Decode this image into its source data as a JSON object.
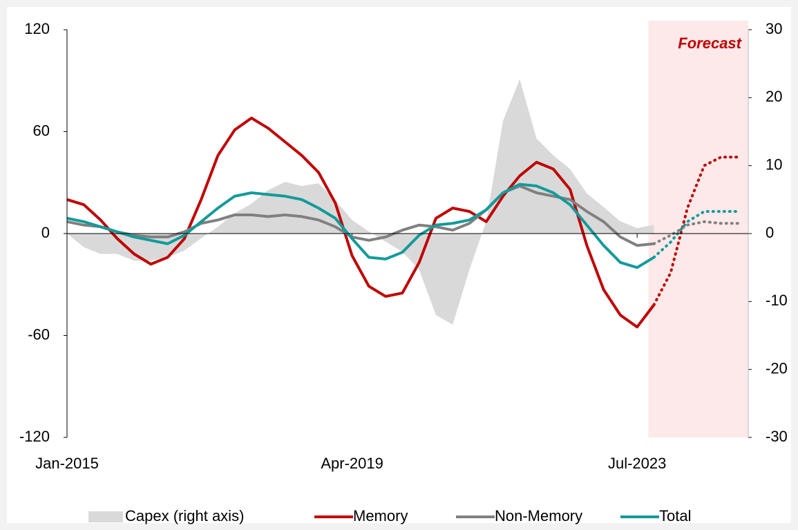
{
  "chart_data": {
    "type": "line",
    "categories": [
      "Jan-2015",
      null,
      null,
      null,
      null,
      null,
      null,
      null,
      null,
      null,
      null,
      null,
      null,
      null,
      null,
      null,
      null,
      "Apr-2019",
      null,
      null,
      null,
      null,
      null,
      null,
      null,
      null,
      null,
      null,
      null,
      null,
      null,
      null,
      null,
      null,
      "Jul-2023",
      null,
      null,
      null,
      null,
      null,
      null
    ],
    "series": [
      {
        "name": "Capex (right axis)",
        "color": "#d9d9d9",
        "axis": "y2",
        "style": "area",
        "values": [
          0,
          -2,
          -3,
          -3,
          -4,
          -4,
          -3.5,
          -2.5,
          -0.7,
          1,
          3,
          4.4,
          6.4,
          7.6,
          7,
          7.4,
          4.9,
          2,
          0.3,
          -1.2,
          -2.7,
          -5.3,
          -12,
          -13.4,
          -5.3,
          1.8,
          16.6,
          22.7,
          14,
          11.5,
          9.5,
          5.9,
          3.9,
          1.8,
          0.8,
          1.3,
          null,
          null,
          null,
          null,
          null
        ]
      },
      {
        "name": "Memory",
        "color": "#c00000",
        "values": [
          20,
          17,
          8,
          -3,
          -12,
          -18,
          -14,
          -3,
          20,
          46,
          61,
          68,
          62,
          54,
          46,
          36,
          18,
          -13,
          -31,
          -37,
          -35,
          -17,
          9,
          15,
          13,
          7,
          22,
          34,
          42,
          38,
          26,
          -7,
          -33,
          -48,
          -55,
          -42,
          -23,
          15,
          40,
          45,
          45
        ]
      },
      {
        "name": "Non-Memory",
        "color": "#808080",
        "values": [
          7,
          5,
          4,
          1,
          -1,
          -2,
          -2,
          1,
          6,
          8,
          11,
          11,
          10,
          11,
          10,
          8,
          4,
          -2,
          -4,
          -2,
          2,
          5,
          4,
          2,
          6,
          14,
          24,
          28,
          24,
          22,
          20,
          13,
          7,
          -2,
          -7,
          -6,
          -1,
          5,
          7,
          6,
          6
        ]
      },
      {
        "name": "Total",
        "color": "#139a9a",
        "values": [
          9,
          7,
          4,
          1,
          -2,
          -4,
          -6,
          -1,
          7,
          15,
          22,
          24,
          23,
          22,
          20,
          15,
          9,
          -3,
          -14,
          -15,
          -11,
          -1,
          5,
          6,
          8,
          14,
          24,
          29,
          28,
          24,
          17,
          5,
          -7,
          -17,
          -20,
          -14,
          -5,
          7,
          13,
          13,
          13
        ]
      }
    ],
    "forecast": {
      "label": "Forecast",
      "start": 35,
      "color": "#fde9e9"
    },
    "ylim": [
      -120,
      120
    ],
    "yticks": [
      -120,
      -60,
      0,
      60,
      120
    ],
    "y2lim": [
      -30,
      30
    ],
    "y2ticks": [
      -30,
      -20,
      -10,
      0,
      10,
      20,
      30
    ],
    "legend": "bottom"
  }
}
